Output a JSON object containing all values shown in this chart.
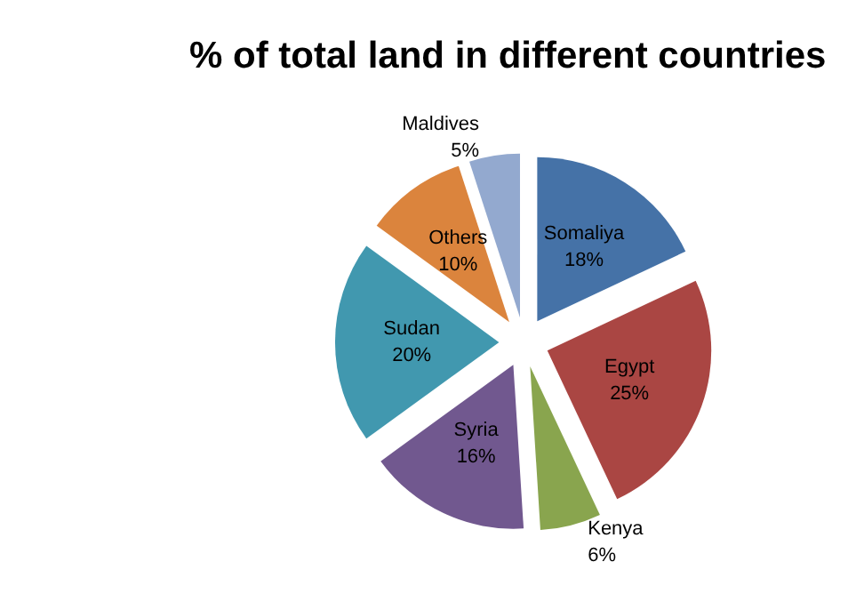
{
  "chart_data": {
    "type": "pie",
    "title": "% of total land in different countries",
    "categories": [
      "Somaliya",
      "Egypt",
      "Kenya",
      "Syria",
      "Sudan",
      "Others",
      "Maldives"
    ],
    "values": [
      18,
      25,
      6,
      16,
      20,
      10,
      5
    ],
    "colors": [
      "#4572a7",
      "#aa4643",
      "#89a54e",
      "#71588f",
      "#4198af",
      "#db843d",
      "#93a9cf"
    ],
    "value_labels": [
      "18%",
      "25%",
      "6%",
      "16%",
      "20%",
      "10%",
      "5%"
    ],
    "legend": false
  }
}
